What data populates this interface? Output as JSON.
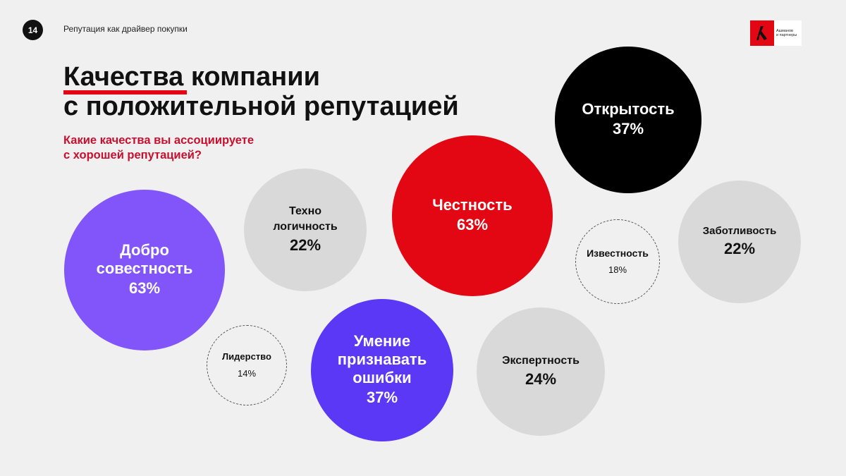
{
  "header": {
    "page_number": "14",
    "section_title": "Репутация как драйвер покупки",
    "logo_text_line1": "Ашманов",
    "logo_text_line2": "и партнеры"
  },
  "title_line1": "Качества компании",
  "title_line2": "с положительной репутацией",
  "question_line1": "Какие качества вы ассоциируете",
  "question_line2": "с хорошей репутацией?",
  "colors": {
    "accent": "#e30613",
    "question": "#c8102e",
    "purple_light": "#8155fa",
    "purple_dark": "#5b37f6",
    "black": "#000000",
    "grey": "#d9d9d9"
  },
  "chart_data": {
    "type": "bubble",
    "unit": "%",
    "items": [
      {
        "label": [
          "Добро",
          "совестность"
        ],
        "value": 63,
        "display": "63%",
        "color": "#8155fa",
        "text_color": "#ffffff"
      },
      {
        "label": [
          "Техно",
          "логичность"
        ],
        "value": 22,
        "display": "22%",
        "color": "#d9d9d9",
        "text_color": "#111111"
      },
      {
        "label": [
          "Честность"
        ],
        "value": 63,
        "display": "63%",
        "color": "#e30613",
        "text_color": "#ffffff"
      },
      {
        "label": [
          "Открытость"
        ],
        "value": 37,
        "display": "37%",
        "color": "#000000",
        "text_color": "#ffffff"
      },
      {
        "label": [
          "Заботливость"
        ],
        "value": 22,
        "display": "22%",
        "color": "#d9d9d9",
        "text_color": "#111111"
      },
      {
        "label": [
          "Известность"
        ],
        "value": 18,
        "display": "18%",
        "color": "transparent",
        "text_color": "#111111",
        "dashed": true
      },
      {
        "label": [
          "Лидерство"
        ],
        "value": 14,
        "display": "14%",
        "color": "transparent",
        "text_color": "#111111",
        "dashed": true
      },
      {
        "label": [
          "Умение",
          "признавать",
          "ошибки"
        ],
        "value": 37,
        "display": "37%",
        "color": "#5b37f6",
        "text_color": "#ffffff"
      },
      {
        "label": [
          "Экспертность"
        ],
        "value": 24,
        "display": "24%",
        "color": "#d9d9d9",
        "text_color": "#111111"
      }
    ]
  }
}
